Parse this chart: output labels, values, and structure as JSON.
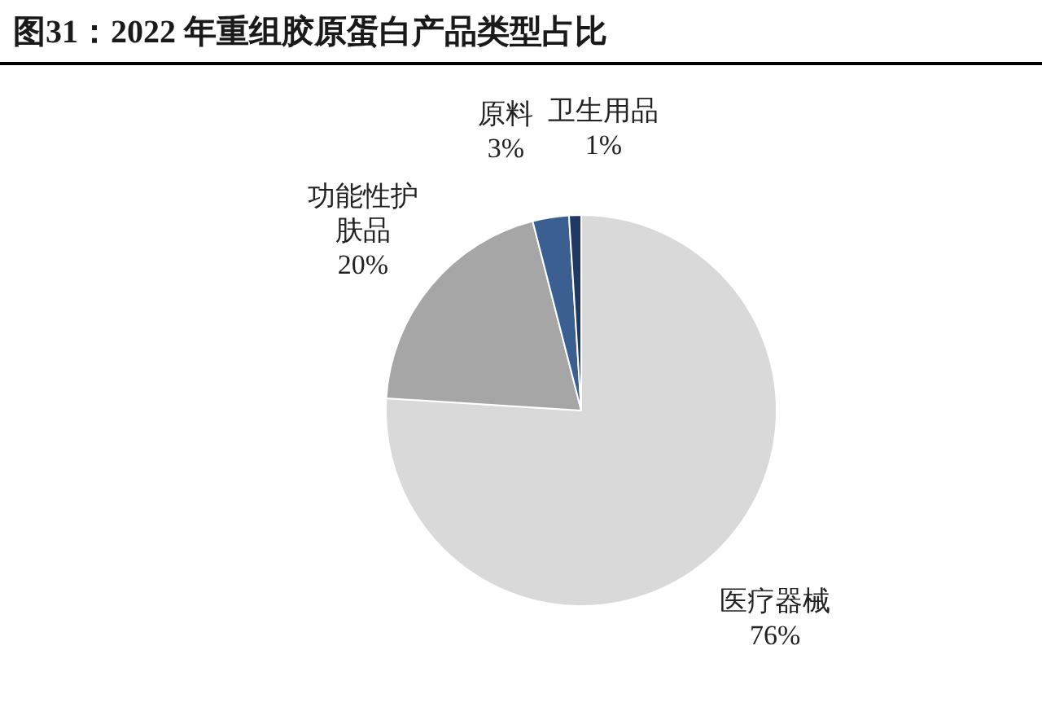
{
  "chart_data": {
    "type": "pie",
    "title": "图31：2022 年重组胶原蛋白产品类型占比",
    "categories": [
      "医疗器械",
      "功能性护肤品",
      "原料",
      "卫生用品"
    ],
    "values": [
      76,
      20,
      3,
      1
    ],
    "colors": [
      "#d9d9d9",
      "#a6a6a6",
      "#3b5f91",
      "#1f3864"
    ],
    "value_labels": [
      "76%",
      "20%",
      "3%",
      "1%"
    ],
    "legend": false
  }
}
